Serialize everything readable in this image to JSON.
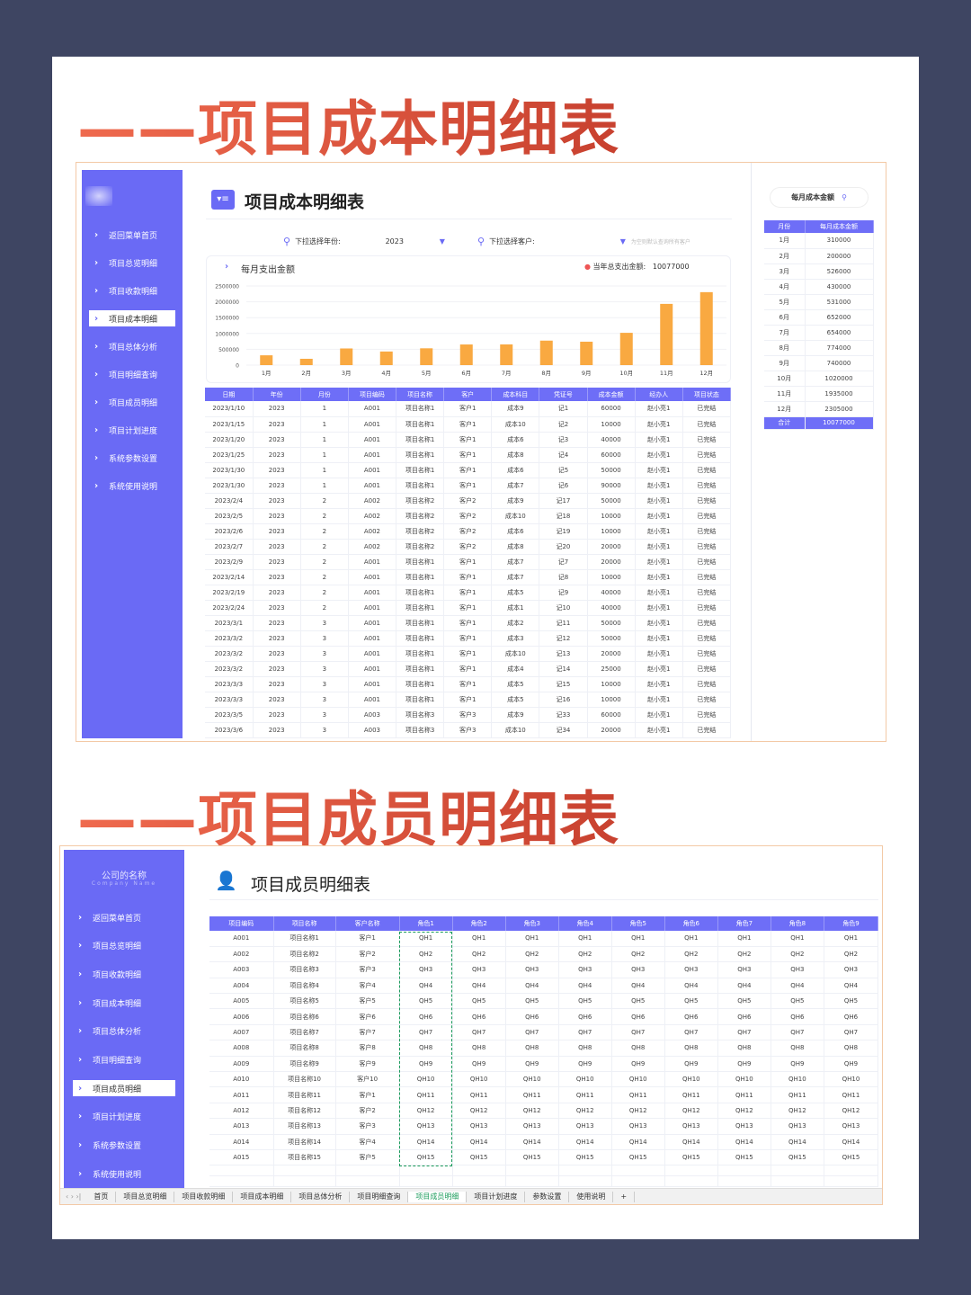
{
  "section1": {
    "heading": "——项目成本明细表"
  },
  "section2": {
    "heading": "——项目成员明细表"
  },
  "colors": {
    "sidebar": "#6a6af5",
    "header": "#6e6ef7",
    "bar": "#f9a941",
    "heading": "#e0553f",
    "background": "#3e4562"
  },
  "cost_app": {
    "title": "项目成本明细表",
    "sidebar": {
      "items": [
        "返回菜单首页",
        "项目总览明细",
        "项目收款明细",
        "项目成本明细",
        "项目总体分析",
        "项目明细查询",
        "项目成员明细",
        "项目计划进度",
        "系统参数设置",
        "系统使用说明"
      ],
      "active_index": 3
    },
    "filters": {
      "year_label": "下拉选择年份:",
      "year_value": "2023",
      "client_label": "下拉选择客户:",
      "client_value": "",
      "client_hint": "为空则默认查询所有客户"
    },
    "chart_title": "每月支出金额",
    "total_label": "当年总支出金额:",
    "total_value": "10077000",
    "table": {
      "columns": [
        "日期",
        "年份",
        "月份",
        "项目编码",
        "项目名称",
        "客户",
        "成本科目",
        "凭证号",
        "成本金额",
        "经办人",
        "项目状态"
      ],
      "rows": [
        [
          "2023/1/10",
          "2023",
          "1",
          "A001",
          "项目名称1",
          "客户1",
          "成本9",
          "记1",
          "60000",
          "赵小亮1",
          "已完结"
        ],
        [
          "2023/1/15",
          "2023",
          "1",
          "A001",
          "项目名称1",
          "客户1",
          "成本10",
          "记2",
          "10000",
          "赵小亮1",
          "已完结"
        ],
        [
          "2023/1/20",
          "2023",
          "1",
          "A001",
          "项目名称1",
          "客户1",
          "成本6",
          "记3",
          "40000",
          "赵小亮1",
          "已完结"
        ],
        [
          "2023/1/25",
          "2023",
          "1",
          "A001",
          "项目名称1",
          "客户1",
          "成本8",
          "记4",
          "60000",
          "赵小亮1",
          "已完结"
        ],
        [
          "2023/1/30",
          "2023",
          "1",
          "A001",
          "项目名称1",
          "客户1",
          "成本6",
          "记5",
          "50000",
          "赵小亮1",
          "已完结"
        ],
        [
          "2023/1/30",
          "2023",
          "1",
          "A001",
          "项目名称1",
          "客户1",
          "成本7",
          "记6",
          "90000",
          "赵小亮1",
          "已完结"
        ],
        [
          "2023/2/4",
          "2023",
          "2",
          "A002",
          "项目名称2",
          "客户2",
          "成本9",
          "记17",
          "50000",
          "赵小亮1",
          "已完结"
        ],
        [
          "2023/2/5",
          "2023",
          "2",
          "A002",
          "项目名称2",
          "客户2",
          "成本10",
          "记18",
          "10000",
          "赵小亮1",
          "已完结"
        ],
        [
          "2023/2/6",
          "2023",
          "2",
          "A002",
          "项目名称2",
          "客户2",
          "成本6",
          "记19",
          "10000",
          "赵小亮1",
          "已完结"
        ],
        [
          "2023/2/7",
          "2023",
          "2",
          "A002",
          "项目名称2",
          "客户2",
          "成本8",
          "记20",
          "20000",
          "赵小亮1",
          "已完结"
        ],
        [
          "2023/2/9",
          "2023",
          "2",
          "A001",
          "项目名称1",
          "客户1",
          "成本7",
          "记7",
          "20000",
          "赵小亮1",
          "已完结"
        ],
        [
          "2023/2/14",
          "2023",
          "2",
          "A001",
          "项目名称1",
          "客户1",
          "成本7",
          "记8",
          "10000",
          "赵小亮1",
          "已完结"
        ],
        [
          "2023/2/19",
          "2023",
          "2",
          "A001",
          "项目名称1",
          "客户1",
          "成本5",
          "记9",
          "40000",
          "赵小亮1",
          "已完结"
        ],
        [
          "2023/2/24",
          "2023",
          "2",
          "A001",
          "项目名称1",
          "客户1",
          "成本1",
          "记10",
          "40000",
          "赵小亮1",
          "已完结"
        ],
        [
          "2023/3/1",
          "2023",
          "3",
          "A001",
          "项目名称1",
          "客户1",
          "成本2",
          "记11",
          "50000",
          "赵小亮1",
          "已完结"
        ],
        [
          "2023/3/2",
          "2023",
          "3",
          "A001",
          "项目名称1",
          "客户1",
          "成本3",
          "记12",
          "50000",
          "赵小亮1",
          "已完结"
        ],
        [
          "2023/3/2",
          "2023",
          "3",
          "A001",
          "项目名称1",
          "客户1",
          "成本10",
          "记13",
          "20000",
          "赵小亮1",
          "已完结"
        ],
        [
          "2023/3/2",
          "2023",
          "3",
          "A001",
          "项目名称1",
          "客户1",
          "成本4",
          "记14",
          "25000",
          "赵小亮1",
          "已完结"
        ],
        [
          "2023/3/3",
          "2023",
          "3",
          "A001",
          "项目名称1",
          "客户1",
          "成本5",
          "记15",
          "10000",
          "赵小亮1",
          "已完结"
        ],
        [
          "2023/3/3",
          "2023",
          "3",
          "A001",
          "项目名称1",
          "客户1",
          "成本5",
          "记16",
          "10000",
          "赵小亮1",
          "已完结"
        ],
        [
          "2023/3/5",
          "2023",
          "3",
          "A003",
          "项目名称3",
          "客户3",
          "成本9",
          "记33",
          "60000",
          "赵小亮1",
          "已完结"
        ],
        [
          "2023/3/6",
          "2023",
          "3",
          "A003",
          "项目名称3",
          "客户3",
          "成本10",
          "记34",
          "20000",
          "赵小亮1",
          "已完结"
        ]
      ]
    },
    "monthly_panel": {
      "search_label": "每月成本金额",
      "columns": [
        "月份",
        "每月成本金额"
      ],
      "rows": [
        [
          "1月",
          "310000"
        ],
        [
          "2月",
          "200000"
        ],
        [
          "3月",
          "526000"
        ],
        [
          "4月",
          "430000"
        ],
        [
          "5月",
          "531000"
        ],
        [
          "6月",
          "652000"
        ],
        [
          "7月",
          "654000"
        ],
        [
          "8月",
          "774000"
        ],
        [
          "9月",
          "740000"
        ],
        [
          "10月",
          "1020000"
        ],
        [
          "11月",
          "1935000"
        ],
        [
          "12月",
          "2305000"
        ]
      ],
      "total": [
        "合计",
        "10077000"
      ]
    }
  },
  "chart_data": {
    "type": "bar",
    "title": "每月支出金额",
    "categories": [
      "1月",
      "2月",
      "3月",
      "4月",
      "5月",
      "6月",
      "7月",
      "8月",
      "9月",
      "10月",
      "11月",
      "12月"
    ],
    "values": [
      310000,
      200000,
      526000,
      430000,
      531000,
      652000,
      654000,
      774000,
      740000,
      1020000,
      1935000,
      2305000
    ],
    "yticks": [
      "0",
      "500000",
      "1000000",
      "1500000",
      "2000000",
      "2500000"
    ],
    "ylim": [
      0,
      2500000
    ],
    "xlabel": "",
    "ylabel": "",
    "grid": true,
    "color": "#f9a941"
  },
  "member_app": {
    "company_name": "公司的名称",
    "company_name_en": "Company Name",
    "title": "项目成员明细表",
    "sidebar": {
      "items": [
        "返回菜单首页",
        "项目总览明细",
        "项目收款明细",
        "项目成本明细",
        "项目总体分析",
        "项目明细查询",
        "项目成员明细",
        "项目计划进度",
        "系统参数设置",
        "系统使用说明"
      ],
      "active_index": 6
    },
    "table": {
      "columns": [
        "项目编码",
        "项目名称",
        "客户名称",
        "角色1",
        "角色2",
        "角色3",
        "角色4",
        "角色5",
        "角色6",
        "角色7",
        "角色8",
        "角色9"
      ],
      "rows": [
        [
          "A001",
          "项目名称1",
          "客户1",
          "QH1",
          "QH1",
          "QH1",
          "QH1",
          "QH1",
          "QH1",
          "QH1",
          "QH1",
          "QH1"
        ],
        [
          "A002",
          "项目名称2",
          "客户2",
          "QH2",
          "QH2",
          "QH2",
          "QH2",
          "QH2",
          "QH2",
          "QH2",
          "QH2",
          "QH2"
        ],
        [
          "A003",
          "项目名称3",
          "客户3",
          "QH3",
          "QH3",
          "QH3",
          "QH3",
          "QH3",
          "QH3",
          "QH3",
          "QH3",
          "QH3"
        ],
        [
          "A004",
          "项目名称4",
          "客户4",
          "QH4",
          "QH4",
          "QH4",
          "QH4",
          "QH4",
          "QH4",
          "QH4",
          "QH4",
          "QH4"
        ],
        [
          "A005",
          "项目名称5",
          "客户5",
          "QH5",
          "QH5",
          "QH5",
          "QH5",
          "QH5",
          "QH5",
          "QH5",
          "QH5",
          "QH5"
        ],
        [
          "A006",
          "项目名称6",
          "客户6",
          "QH6",
          "QH6",
          "QH6",
          "QH6",
          "QH6",
          "QH6",
          "QH6",
          "QH6",
          "QH6"
        ],
        [
          "A007",
          "项目名称7",
          "客户7",
          "QH7",
          "QH7",
          "QH7",
          "QH7",
          "QH7",
          "QH7",
          "QH7",
          "QH7",
          "QH7"
        ],
        [
          "A008",
          "项目名称8",
          "客户8",
          "QH8",
          "QH8",
          "QH8",
          "QH8",
          "QH8",
          "QH8",
          "QH8",
          "QH8",
          "QH8"
        ],
        [
          "A009",
          "项目名称9",
          "客户9",
          "QH9",
          "QH9",
          "QH9",
          "QH9",
          "QH9",
          "QH9",
          "QH9",
          "QH9",
          "QH9"
        ],
        [
          "A010",
          "项目名称10",
          "客户10",
          "QH10",
          "QH10",
          "QH10",
          "QH10",
          "QH10",
          "QH10",
          "QH10",
          "QH10",
          "QH10"
        ],
        [
          "A011",
          "项目名称11",
          "客户1",
          "QH11",
          "QH11",
          "QH11",
          "QH11",
          "QH11",
          "QH11",
          "QH11",
          "QH11",
          "QH11"
        ],
        [
          "A012",
          "项目名称12",
          "客户2",
          "QH12",
          "QH12",
          "QH12",
          "QH12",
          "QH12",
          "QH12",
          "QH12",
          "QH12",
          "QH12"
        ],
        [
          "A013",
          "项目名称13",
          "客户3",
          "QH13",
          "QH13",
          "QH13",
          "QH13",
          "QH13",
          "QH13",
          "QH13",
          "QH13",
          "QH13"
        ],
        [
          "A014",
          "项目名称14",
          "客户4",
          "QH14",
          "QH14",
          "QH14",
          "QH14",
          "QH14",
          "QH14",
          "QH14",
          "QH14",
          "QH14"
        ],
        [
          "A015",
          "项目名称15",
          "客户5",
          "QH15",
          "QH15",
          "QH15",
          "QH15",
          "QH15",
          "QH15",
          "QH15",
          "QH15",
          "QH15"
        ]
      ]
    },
    "sheet_tabs": {
      "items": [
        "首页",
        "项目总览明细",
        "项目收款明细",
        "项目成本明细",
        "项目总体分析",
        "项目明细查询",
        "项目成员明细",
        "项目计划进度",
        "参数设置",
        "使用说明"
      ],
      "active_index": 6,
      "add": "+"
    }
  }
}
